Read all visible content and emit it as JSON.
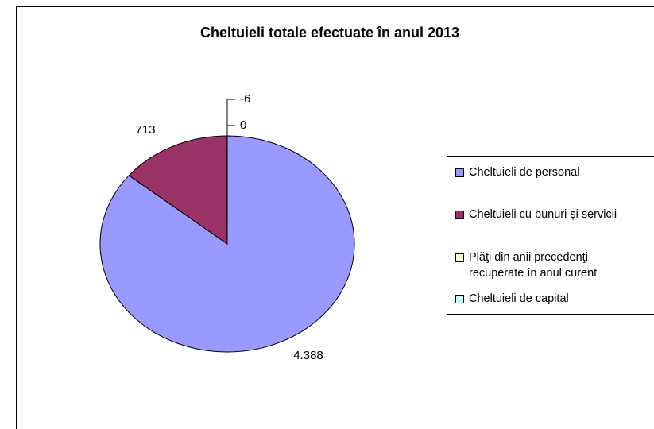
{
  "chart_data": {
    "type": "pie",
    "title": "Cheltuieli totale efectuate în anul 2013",
    "categories": [
      "Cheltuieli de personal",
      "Cheltuieli cu bunuri și servicii",
      "Plăţi din anii precedenţi recuperate în anul curent",
      "Cheltuieli de capital"
    ],
    "values": [
      4388,
      713,
      -6,
      0
    ],
    "value_labels": [
      "4.388",
      "713",
      "-6",
      "0"
    ],
    "colors": [
      "#9999ff",
      "#993366",
      "#ffffcc",
      "#ccffff"
    ],
    "legend": "right"
  }
}
